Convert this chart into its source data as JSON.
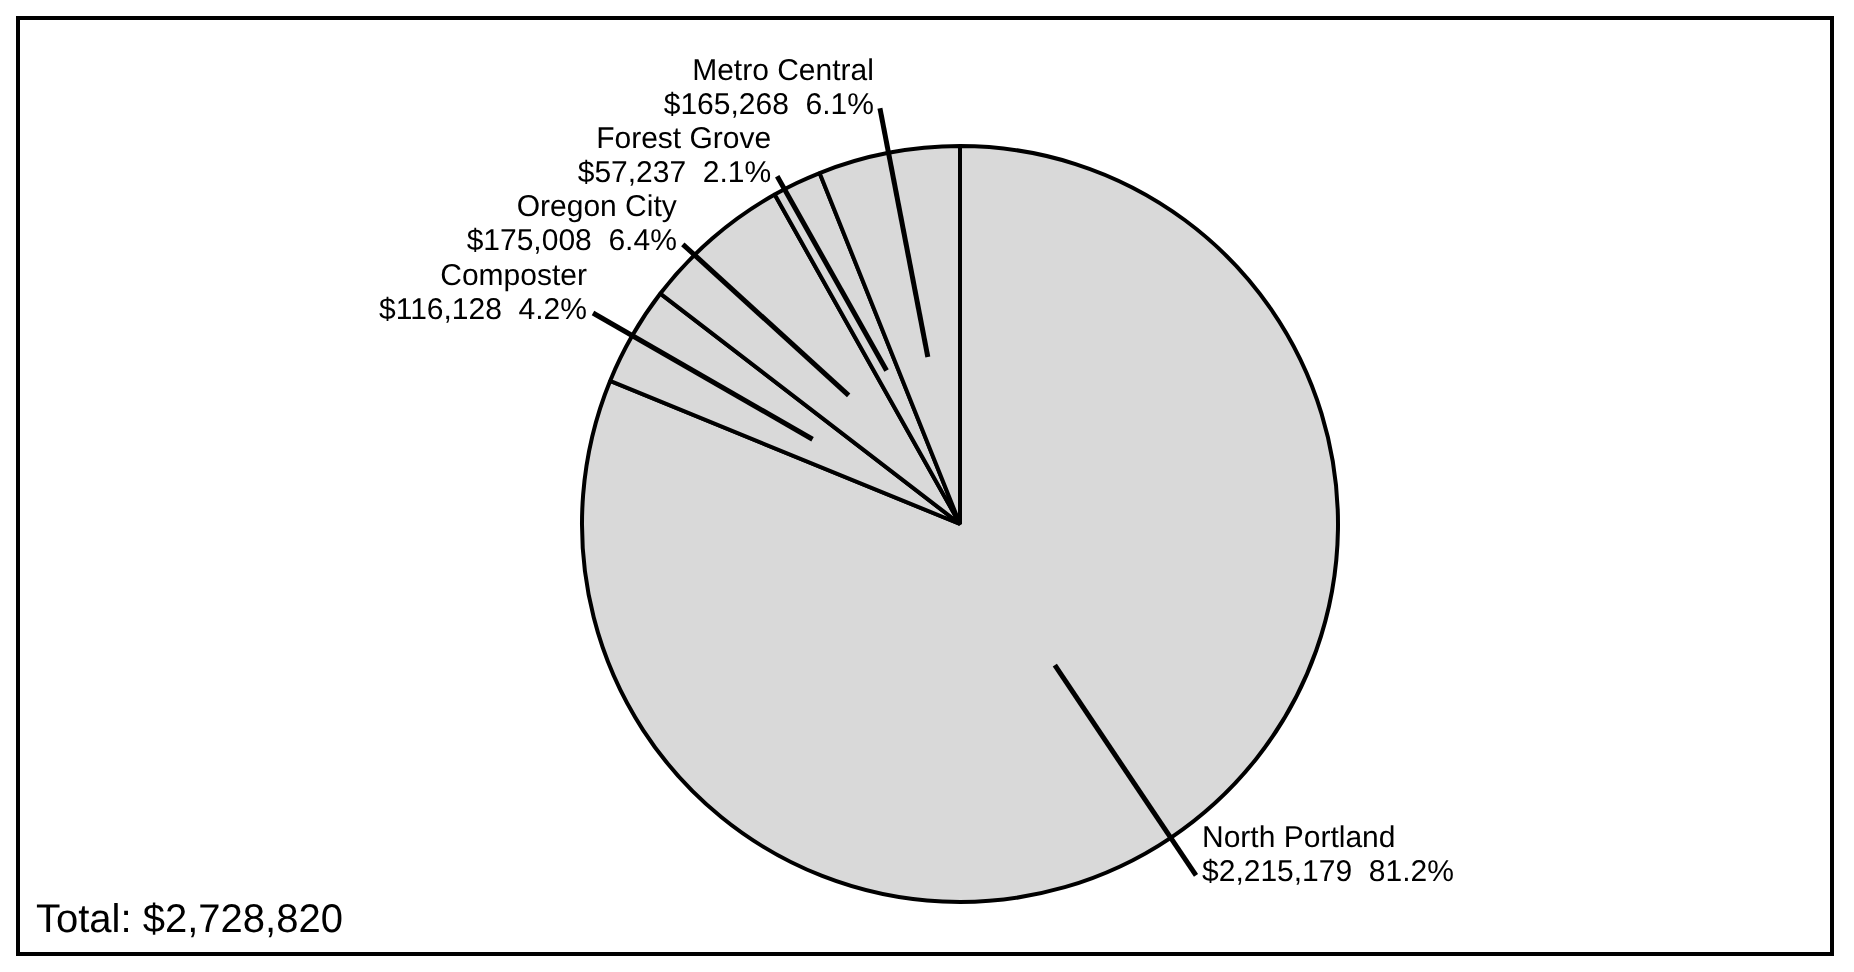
{
  "chart_data": {
    "type": "pie",
    "categories": [
      "North Portland",
      "Composter",
      "Oregon City",
      "Forest Grove",
      "Metro Central"
    ],
    "values": [
      2215179,
      116128,
      175008,
      57237,
      165268
    ],
    "value_labels": [
      "$2,215,179  81.2%",
      "$116,128  4.2%",
      "$175,008  6.4%",
      "$57,237  2.1%",
      "$165,268  6.1%"
    ],
    "colors": [
      "#d9d9d9",
      "#d9d9d9",
      "#d9d9d9",
      "#d9d9d9",
      "#d9d9d9"
    ],
    "annotations": [
      "Total: $2,728,820"
    ],
    "legend": false
  }
}
